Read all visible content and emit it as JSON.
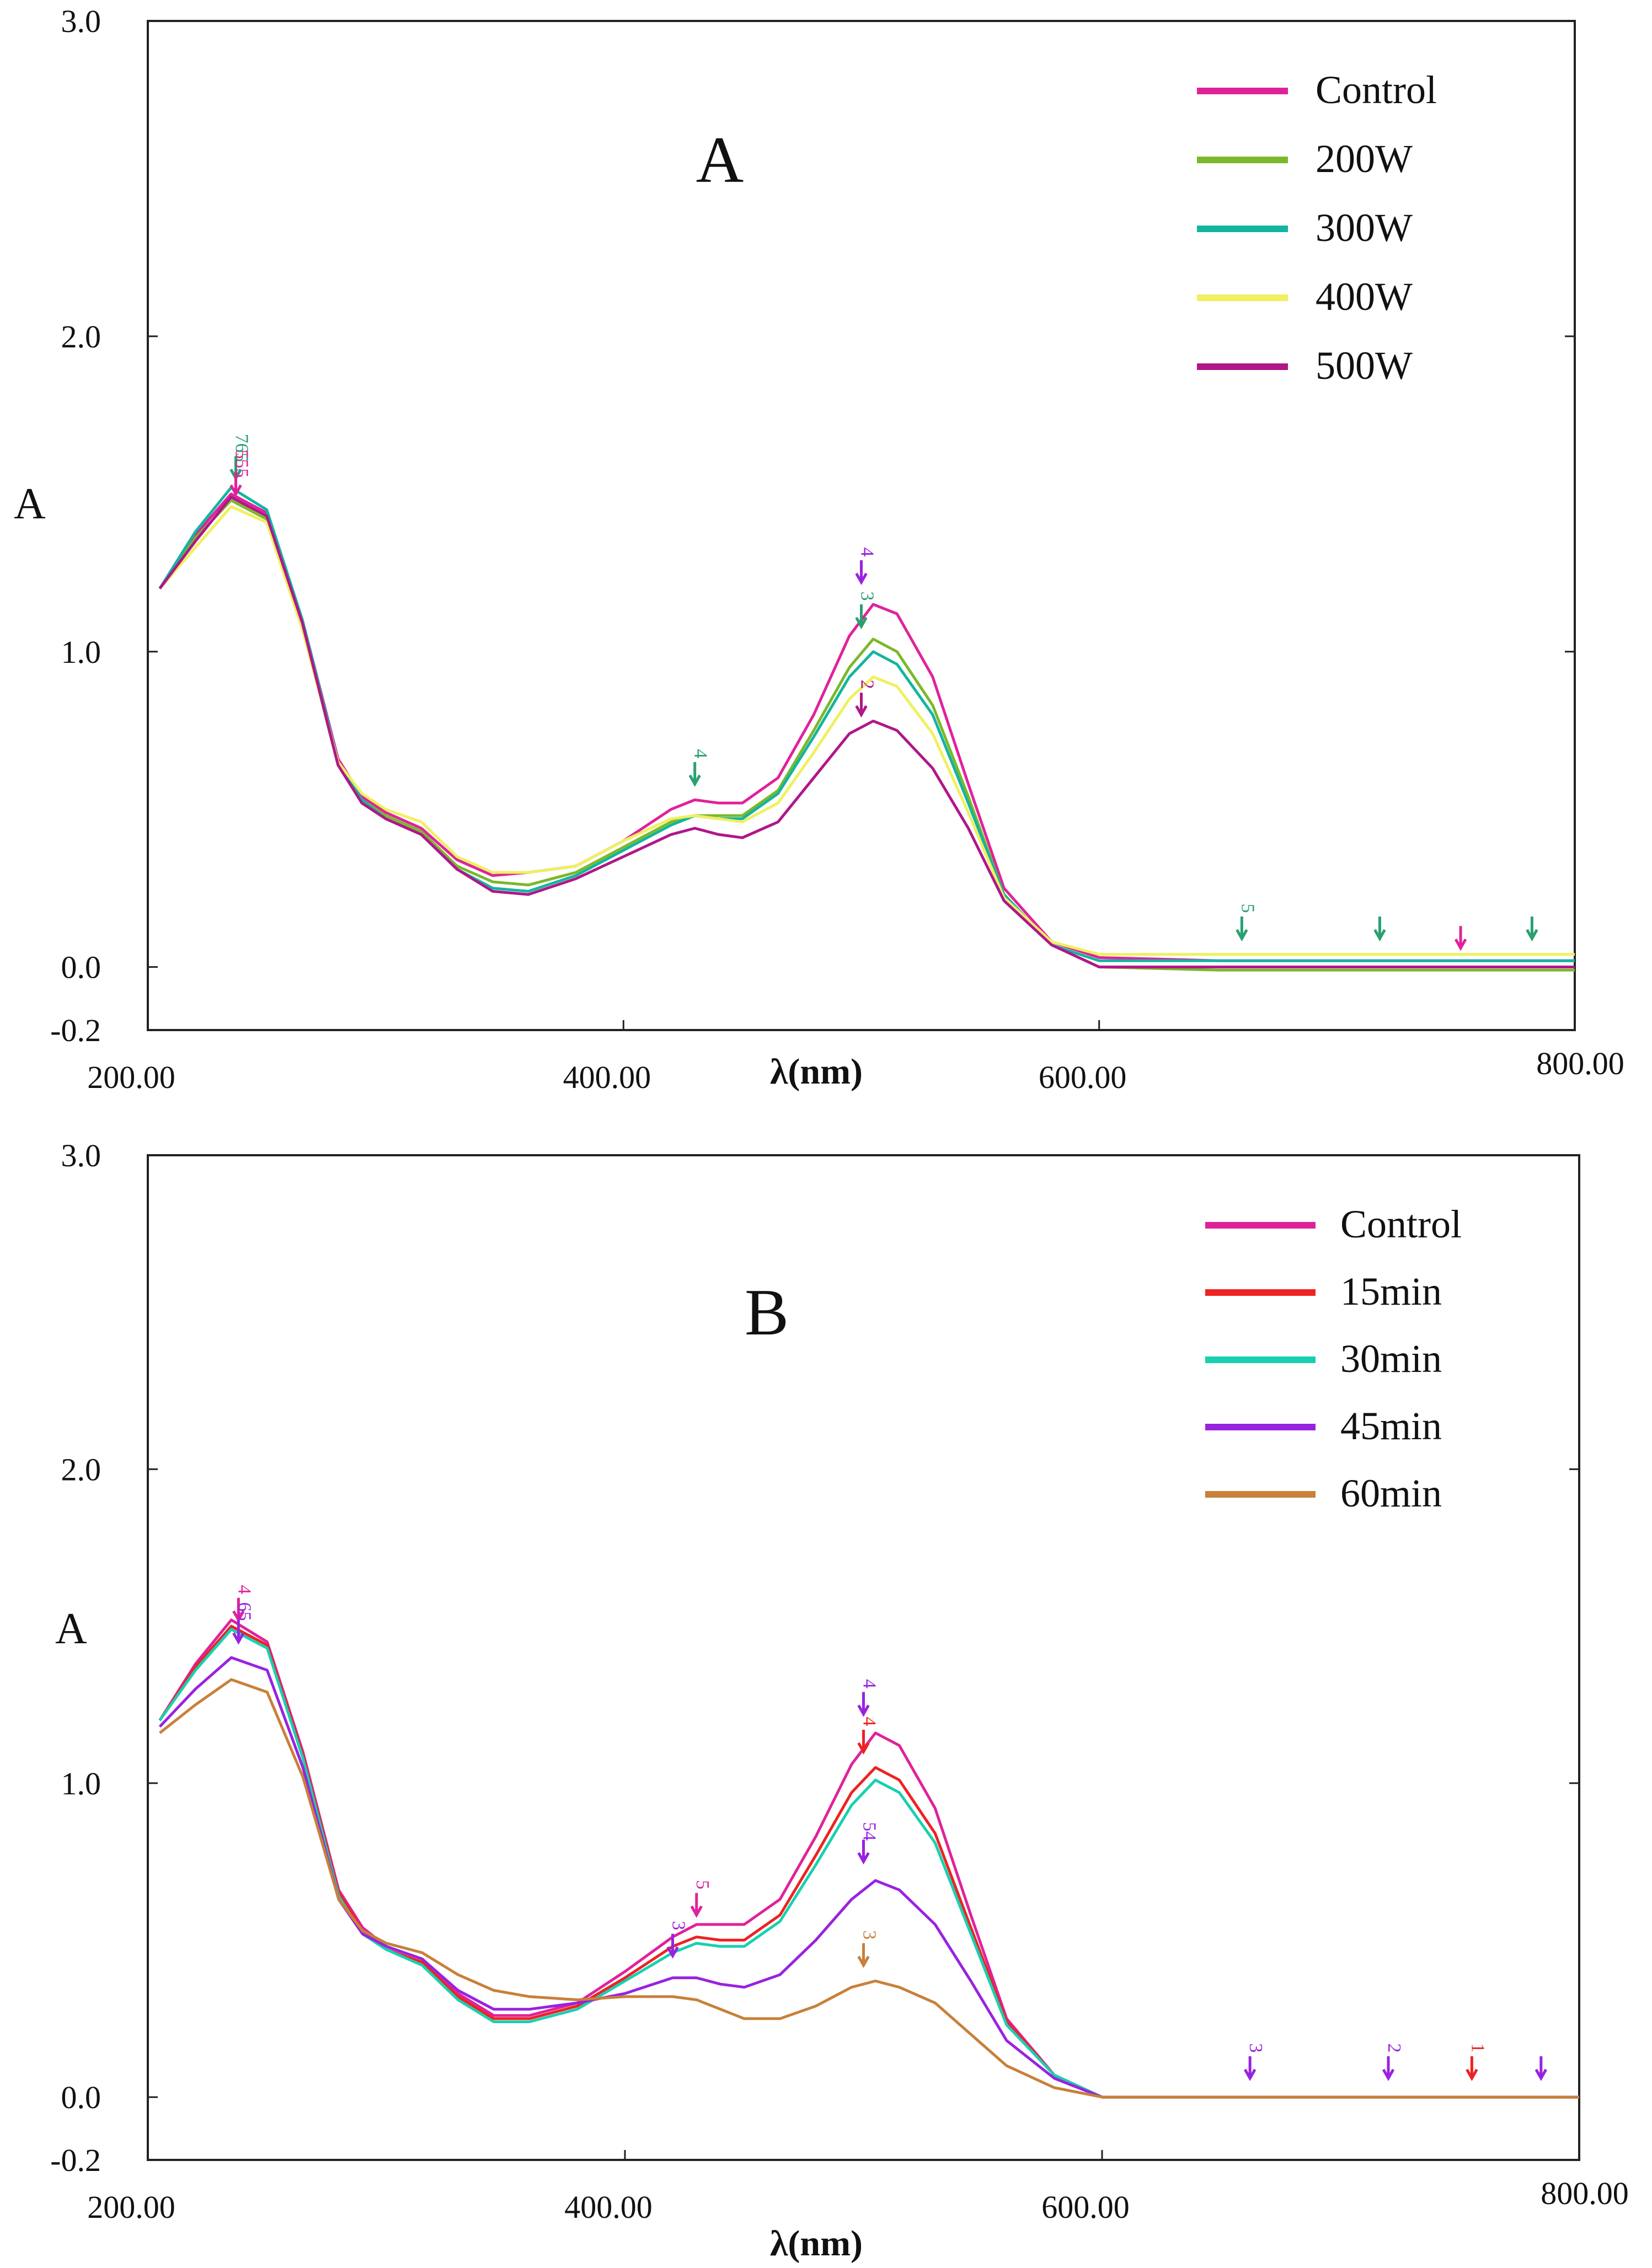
{
  "chart_data": [
    {
      "type": "line",
      "panel_label": "A",
      "xlabel": "λ(nm)",
      "ylabel": "A",
      "xlim": [
        200,
        800
      ],
      "ylim": [
        -0.2,
        3.0
      ],
      "x_ticks": [
        "200.00",
        "400.00",
        "600.00",
        "800.00"
      ],
      "y_ticks": [
        "3.0",
        "2.0",
        "1.0",
        "0.0",
        "-0.2"
      ],
      "grid": false,
      "legend_position": "top-right",
      "legend": [
        "Control",
        "200W",
        "300W",
        "400W",
        "500W"
      ],
      "x": [
        205,
        220,
        235,
        250,
        265,
        280,
        290,
        300,
        315,
        330,
        345,
        360,
        380,
        400,
        420,
        430,
        440,
        450,
        465,
        480,
        495,
        505,
        515,
        530,
        545,
        560,
        580,
        600,
        650,
        700,
        750,
        800
      ],
      "series": [
        {
          "name": "Control",
          "color": "#e0229a",
          "values": [
            1.2,
            1.37,
            1.5,
            1.44,
            1.1,
            0.66,
            0.54,
            0.49,
            0.44,
            0.34,
            0.29,
            0.3,
            0.32,
            0.4,
            0.5,
            0.53,
            0.52,
            0.52,
            0.6,
            0.8,
            1.05,
            1.15,
            1.12,
            0.92,
            0.58,
            0.25,
            0.08,
            0.03,
            0.02,
            0.02,
            0.02,
            0.02
          ]
        },
        {
          "name": "200W",
          "color": "#7bb82a",
          "values": [
            1.2,
            1.36,
            1.48,
            1.42,
            1.08,
            0.64,
            0.53,
            0.48,
            0.43,
            0.32,
            0.27,
            0.26,
            0.3,
            0.38,
            0.46,
            0.48,
            0.48,
            0.48,
            0.56,
            0.75,
            0.95,
            1.04,
            1.0,
            0.83,
            0.54,
            0.23,
            0.07,
            0.0,
            -0.01,
            -0.01,
            -0.01,
            -0.01
          ]
        },
        {
          "name": "300W",
          "color": "#12b5a0",
          "values": [
            1.2,
            1.38,
            1.52,
            1.45,
            1.1,
            0.65,
            0.53,
            0.47,
            0.42,
            0.31,
            0.25,
            0.24,
            0.29,
            0.37,
            0.45,
            0.48,
            0.47,
            0.47,
            0.55,
            0.73,
            0.92,
            1.0,
            0.96,
            0.8,
            0.52,
            0.23,
            0.07,
            0.02,
            0.02,
            0.02,
            0.02,
            0.02
          ]
        },
        {
          "name": "400W",
          "color": "#f0f060",
          "values": [
            1.2,
            1.33,
            1.46,
            1.41,
            1.07,
            0.65,
            0.55,
            0.5,
            0.46,
            0.35,
            0.3,
            0.3,
            0.32,
            0.4,
            0.47,
            0.48,
            0.47,
            0.46,
            0.52,
            0.68,
            0.85,
            0.92,
            0.89,
            0.74,
            0.49,
            0.22,
            0.08,
            0.04,
            0.04,
            0.04,
            0.04,
            0.04
          ]
        },
        {
          "name": "500W",
          "color": "#b0168a",
          "values": [
            1.2,
            1.35,
            1.49,
            1.43,
            1.09,
            0.64,
            0.52,
            0.47,
            0.42,
            0.31,
            0.24,
            0.23,
            0.28,
            0.35,
            0.42,
            0.44,
            0.42,
            0.41,
            0.46,
            0.6,
            0.74,
            0.78,
            0.75,
            0.63,
            0.44,
            0.21,
            0.07,
            0.0,
            0.0,
            0.0,
            0.0,
            0.0
          ]
        }
      ],
      "annotations": [
        "765",
        "555",
        "4",
        "4",
        "3",
        "2",
        "5"
      ]
    },
    {
      "type": "line",
      "panel_label": "B",
      "xlabel": "λ(nm)",
      "ylabel": "A",
      "xlim": [
        200,
        800
      ],
      "ylim": [
        -0.2,
        3.0
      ],
      "x_ticks": [
        "200.00",
        "400.00",
        "600.00",
        "800.00"
      ],
      "y_ticks": [
        "3.0",
        "2.0",
        "1.0",
        "0.0",
        "-0.2"
      ],
      "grid": false,
      "legend_position": "top-right",
      "legend": [
        "Control",
        "15min",
        "30min",
        "45min",
        "60min"
      ],
      "x": [
        205,
        220,
        235,
        250,
        265,
        280,
        290,
        300,
        315,
        330,
        345,
        360,
        380,
        400,
        420,
        430,
        440,
        450,
        465,
        480,
        495,
        505,
        515,
        530,
        545,
        560,
        580,
        600,
        650,
        700,
        750,
        800
      ],
      "series": [
        {
          "name": "Control",
          "color": "#e0229a",
          "values": [
            1.2,
            1.38,
            1.52,
            1.45,
            1.1,
            0.66,
            0.54,
            0.48,
            0.44,
            0.33,
            0.26,
            0.26,
            0.3,
            0.4,
            0.51,
            0.55,
            0.55,
            0.55,
            0.63,
            0.83,
            1.06,
            1.16,
            1.12,
            0.92,
            0.58,
            0.25,
            0.07,
            0.0,
            0.0,
            0.0,
            0.0,
            0.0
          ]
        },
        {
          "name": "15min",
          "color": "#ee2222",
          "values": [
            1.2,
            1.37,
            1.5,
            1.44,
            1.09,
            0.65,
            0.53,
            0.47,
            0.43,
            0.32,
            0.25,
            0.25,
            0.29,
            0.38,
            0.48,
            0.51,
            0.5,
            0.5,
            0.58,
            0.77,
            0.97,
            1.05,
            1.01,
            0.84,
            0.54,
            0.24,
            0.07,
            0.0,
            0.0,
            0.0,
            0.0,
            0.0
          ]
        },
        {
          "name": "30min",
          "color": "#18d0b0",
          "values": [
            1.2,
            1.36,
            1.49,
            1.43,
            1.08,
            0.64,
            0.52,
            0.47,
            0.42,
            0.31,
            0.24,
            0.24,
            0.28,
            0.37,
            0.46,
            0.49,
            0.48,
            0.48,
            0.56,
            0.74,
            0.93,
            1.01,
            0.97,
            0.81,
            0.52,
            0.23,
            0.07,
            0.0,
            0.0,
            0.0,
            0.0,
            0.0
          ]
        },
        {
          "name": "45min",
          "color": "#9922e0",
          "values": [
            1.18,
            1.3,
            1.4,
            1.36,
            1.05,
            0.63,
            0.52,
            0.48,
            0.44,
            0.34,
            0.28,
            0.28,
            0.3,
            0.33,
            0.38,
            0.38,
            0.36,
            0.35,
            0.39,
            0.5,
            0.63,
            0.69,
            0.66,
            0.55,
            0.37,
            0.18,
            0.06,
            0.0,
            0.0,
            0.0,
            0.0,
            0.0
          ]
        },
        {
          "name": "60min",
          "color": "#c8803a",
          "values": [
            1.16,
            1.25,
            1.33,
            1.29,
            1.02,
            0.63,
            0.53,
            0.49,
            0.46,
            0.39,
            0.34,
            0.32,
            0.31,
            0.32,
            0.32,
            0.31,
            0.28,
            0.25,
            0.25,
            0.29,
            0.35,
            0.37,
            0.35,
            0.3,
            0.2,
            0.1,
            0.03,
            0.0,
            0.0,
            0.0,
            0.0,
            0.0
          ]
        }
      ],
      "annotations": [
        "4",
        "65",
        "5",
        "3",
        "4",
        "4",
        "54",
        "3",
        "3",
        "2",
        "1"
      ]
    }
  ]
}
